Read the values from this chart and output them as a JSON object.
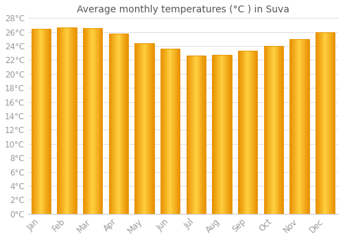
{
  "title": "Average monthly temperatures (°C ) in Suva",
  "months": [
    "Jan",
    "Feb",
    "Mar",
    "Apr",
    "May",
    "Jun",
    "Jul",
    "Aug",
    "Sep",
    "Oct",
    "Nov",
    "Dec"
  ],
  "temperatures": [
    26.5,
    26.7,
    26.6,
    25.8,
    24.4,
    23.6,
    22.6,
    22.7,
    23.3,
    24.0,
    25.0,
    26.0
  ],
  "bar_color_center": "#FFD040",
  "bar_color_edge": "#E89000",
  "background_color": "#ffffff",
  "grid_color": "#e0e0e0",
  "text_color": "#999999",
  "title_color": "#555555",
  "ylim": [
    0,
    28
  ],
  "ytick_interval": 2,
  "title_fontsize": 10,
  "tick_fontsize": 8.5,
  "bar_width": 0.75
}
